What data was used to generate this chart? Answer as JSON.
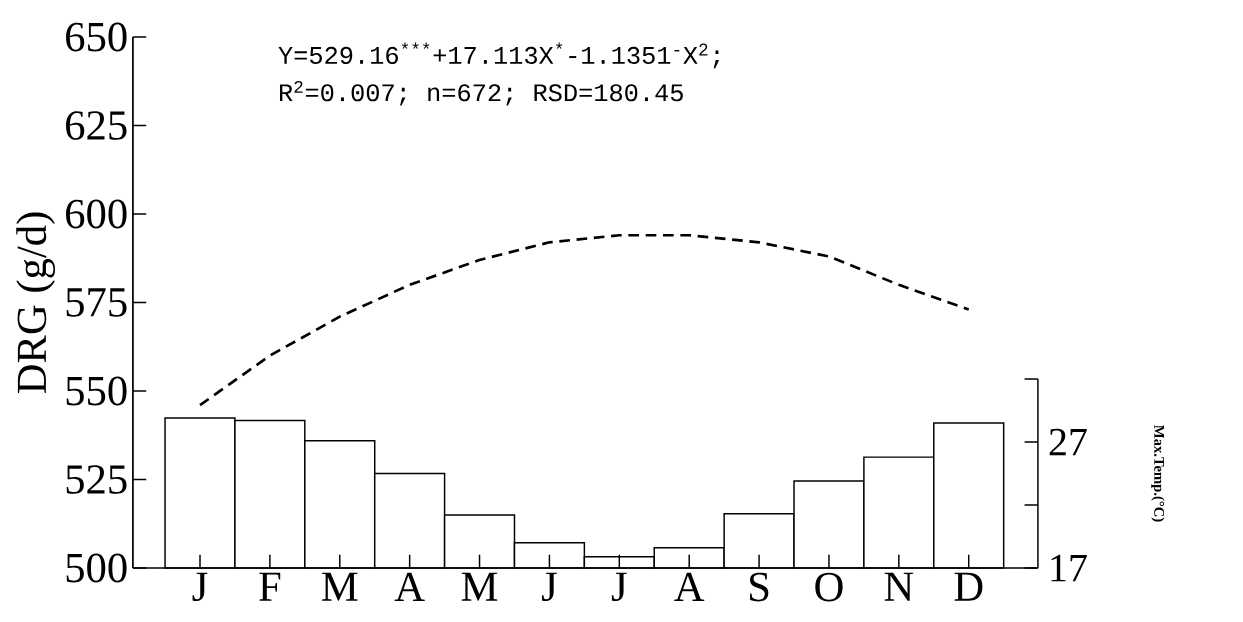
{
  "chart_data": {
    "type": "bar",
    "categories": [
      "J",
      "F",
      "M",
      "A",
      "M",
      "J",
      "J",
      "A",
      "S",
      "O",
      "N",
      "D"
    ],
    "ylabel": "DRG (g/d)",
    "y2label": "Max.Temp.(°C)",
    "ylim": [
      500,
      650
    ],
    "yticks": [
      500,
      525,
      550,
      575,
      600,
      625,
      650
    ],
    "y2lim": [
      17,
      32
    ],
    "y2ticks": [
      17,
      {
        "value": 22,
        "label": null
      },
      27,
      {
        "value": 32,
        "label": null
      }
    ],
    "series": [
      {
        "axis": "y2",
        "color": "#ffffff",
        "values": [
          28.9,
          28.7,
          27.1,
          24.5,
          21.2,
          19.0,
          17.9,
          18.6,
          21.3,
          23.9,
          25.8,
          28.5
        ]
      },
      {
        "type": "line",
        "color": "#000000",
        "line_style": "dashed",
        "marker": "none",
        "values": [
          546,
          560,
          571,
          580,
          587,
          592,
          594,
          594,
          592,
          588,
          580,
          573
        ]
      }
    ],
    "annotations": [
      "Y=529.16$^{***}$+17.113X$^{*}$-1.1351$^{-}$X$^{2}$;",
      "R$^{2}$=0.007; n=672; RSD=180.45"
    ]
  }
}
